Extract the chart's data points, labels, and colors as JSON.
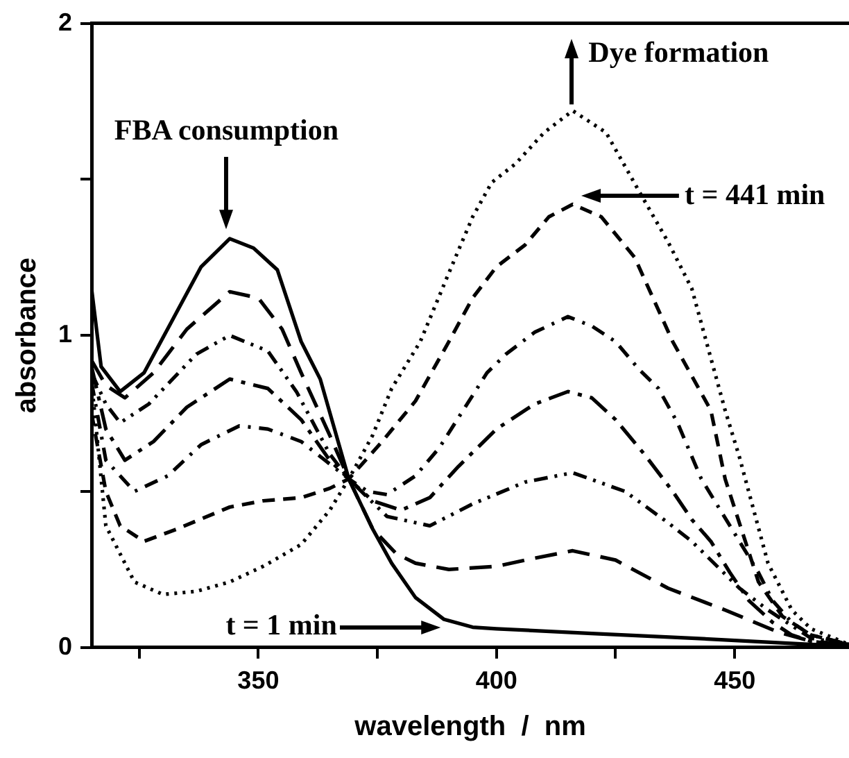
{
  "chart_data": {
    "type": "line",
    "xlabel": "wavelength  /  nm",
    "ylabel": "absorbance",
    "xlim": [
      315,
      474
    ],
    "xticks": [
      {
        "value": 325,
        "label": null
      },
      350,
      {
        "value": 375,
        "label": null
      },
      400,
      {
        "value": 425,
        "label": null
      },
      450
    ],
    "ylim": [
      0,
      2
    ],
    "yticks": [
      0,
      {
        "value": 0.5,
        "label": null
      },
      1,
      {
        "value": 1.5,
        "label": null
      },
      2
    ],
    "grid": false,
    "legend": false,
    "marker": "none",
    "annotations": [
      "FBA consumption",
      "Dye formation",
      "t = 441 min",
      "t = 1 min"
    ],
    "series": [
      {
        "color": "#000000",
        "line_style": "solid",
        "x": [
          315,
          317,
          321,
          326,
          332,
          338,
          344,
          349,
          354,
          359,
          363,
          369,
          374,
          378,
          383,
          389,
          395,
          400,
          420,
          441,
          466,
          474
        ],
        "values": [
          1.15,
          0.9,
          0.82,
          0.88,
          1.05,
          1.22,
          1.31,
          1.28,
          1.21,
          0.98,
          0.86,
          0.54,
          0.38,
          0.27,
          0.16,
          0.09,
          0.065,
          0.06,
          0.045,
          0.03,
          0.01,
          0.005
        ]
      },
      {
        "color": "#000000",
        "line_style": "longdash",
        "x": [
          315,
          318,
          322,
          328,
          335,
          344,
          350,
          355,
          359,
          365,
          369,
          374,
          379,
          383,
          390,
          400,
          406,
          416,
          425,
          436,
          448,
          459,
          466,
          474
        ],
        "values": [
          0.92,
          0.84,
          0.8,
          0.88,
          1.02,
          1.14,
          1.12,
          1.02,
          0.88,
          0.68,
          0.54,
          0.38,
          0.3,
          0.27,
          0.25,
          0.26,
          0.28,
          0.31,
          0.28,
          0.19,
          0.12,
          0.05,
          0.02,
          0.005
        ]
      },
      {
        "color": "#000000",
        "line_style": "dashdotdot",
        "x": [
          315,
          318,
          321,
          327,
          337,
          344,
          352,
          358,
          365,
          369,
          377,
          386,
          395,
          406,
          416,
          427,
          436,
          441,
          451,
          457,
          466,
          474
        ],
        "values": [
          0.88,
          0.78,
          0.72,
          0.78,
          0.94,
          1.0,
          0.95,
          0.82,
          0.62,
          0.54,
          0.42,
          0.39,
          0.46,
          0.53,
          0.56,
          0.5,
          0.4,
          0.34,
          0.19,
          0.12,
          0.03,
          0.01
        ]
      },
      {
        "color": "#000000",
        "line_style": "longdashdot",
        "x": [
          315,
          318,
          322,
          328,
          335,
          344,
          352,
          359,
          365,
          369,
          374,
          380,
          386,
          392,
          400,
          408,
          415,
          420,
          425,
          431,
          437,
          441,
          445,
          449,
          453,
          458,
          462,
          466,
          474
        ],
        "values": [
          0.9,
          0.7,
          0.6,
          0.66,
          0.77,
          0.86,
          0.83,
          0.73,
          0.6,
          0.54,
          0.47,
          0.44,
          0.48,
          0.58,
          0.7,
          0.78,
          0.82,
          0.8,
          0.73,
          0.62,
          0.5,
          0.41,
          0.34,
          0.24,
          0.15,
          0.08,
          0.04,
          0.02,
          0.01
        ]
      },
      {
        "color": "#000000",
        "line_style": "dashdot",
        "x": [
          315,
          318,
          324,
          331,
          338,
          346,
          352,
          359,
          364,
          369,
          373,
          377,
          383,
          388,
          393,
          398,
          402,
          408,
          415,
          420,
          425,
          430,
          434,
          438,
          443,
          447,
          451,
          455,
          458,
          462,
          466,
          474
        ],
        "values": [
          0.85,
          0.6,
          0.5,
          0.55,
          0.65,
          0.71,
          0.7,
          0.66,
          0.6,
          0.54,
          0.5,
          0.49,
          0.55,
          0.64,
          0.76,
          0.88,
          0.94,
          1.01,
          1.06,
          1.03,
          0.98,
          0.89,
          0.83,
          0.72,
          0.54,
          0.44,
          0.34,
          0.24,
          0.15,
          0.08,
          0.04,
          0.01
        ]
      },
      {
        "color": "#000000",
        "line_style": "dashed",
        "x": [
          315,
          318,
          321,
          326,
          333,
          344,
          351,
          359,
          365,
          369,
          376,
          383,
          390,
          395,
          400,
          406,
          411,
          416,
          422,
          429,
          437,
          445,
          448,
          455,
          460,
          466,
          474
        ],
        "values": [
          0.75,
          0.5,
          0.39,
          0.34,
          0.38,
          0.45,
          0.47,
          0.48,
          0.51,
          0.54,
          0.66,
          0.79,
          0.98,
          1.12,
          1.22,
          1.29,
          1.38,
          1.42,
          1.38,
          1.25,
          0.98,
          0.76,
          0.54,
          0.21,
          0.1,
          0.04,
          0.01
        ]
      },
      {
        "color": "#000000",
        "line_style": "dotted",
        "x": [
          315,
          318,
          324,
          330,
          337,
          344,
          351,
          359,
          365,
          369,
          374,
          378,
          384,
          390,
          395,
          399,
          404,
          410,
          416,
          423,
          430,
          436,
          441,
          448,
          451,
          457,
          462,
          466,
          474
        ],
        "values": [
          0.85,
          0.39,
          0.21,
          0.17,
          0.18,
          0.21,
          0.26,
          0.33,
          0.44,
          0.54,
          0.68,
          0.83,
          0.98,
          1.2,
          1.38,
          1.49,
          1.55,
          1.65,
          1.72,
          1.65,
          1.46,
          1.3,
          1.15,
          0.76,
          0.61,
          0.27,
          0.12,
          0.06,
          0.01
        ]
      }
    ]
  }
}
